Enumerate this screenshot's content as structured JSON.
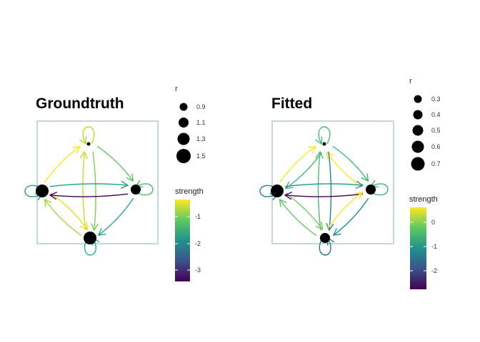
{
  "panels": [
    {
      "id": "groundtruth",
      "title": "Groundtruth",
      "size_legend": {
        "title": "r",
        "labels": [
          "0.9",
          "1.1",
          "1.3",
          "1.5"
        ]
      },
      "color_legend": {
        "title": "strength",
        "labels": [
          "-1",
          "-2",
          "-3"
        ]
      },
      "nodes": [
        {
          "name": "top",
          "size": "small"
        },
        {
          "name": "left",
          "size": "large"
        },
        {
          "name": "right",
          "size": "medium"
        },
        {
          "name": "bottom",
          "size": "large"
        }
      ],
      "edges": [
        {
          "from": "top",
          "to": "top",
          "color": "#b8de29"
        },
        {
          "from": "top",
          "to": "right",
          "color": "#5ec962"
        },
        {
          "from": "top",
          "to": "bottom",
          "color": "#7ad151"
        },
        {
          "from": "bottom",
          "to": "top",
          "color": "#c2df23"
        },
        {
          "from": "left",
          "to": "top",
          "color": "#fde725"
        },
        {
          "from": "left",
          "to": "left",
          "color": "#2a9d8f"
        },
        {
          "from": "left",
          "to": "bottom",
          "color": "#dde318"
        },
        {
          "from": "bottom",
          "to": "left",
          "color": "#a0da39"
        },
        {
          "from": "right",
          "to": "left",
          "color": "#440154"
        },
        {
          "from": "left",
          "to": "right",
          "color": "#1f9e89"
        },
        {
          "from": "right",
          "to": "right",
          "color": "#4ac16d"
        },
        {
          "from": "right",
          "to": "bottom",
          "color": "#22a884"
        },
        {
          "from": "bottom",
          "to": "bottom",
          "color": "#2db27d"
        }
      ]
    },
    {
      "id": "fitted",
      "title": "Fitted",
      "size_legend": {
        "title": "r",
        "labels": [
          "0.3",
          "0.4",
          "0.5",
          "0.6",
          "0.7"
        ]
      },
      "color_legend": {
        "title": "strength",
        "labels": [
          "0",
          "-1",
          "-2"
        ]
      },
      "nodes": [
        {
          "name": "top",
          "size": "small"
        },
        {
          "name": "left",
          "size": "large"
        },
        {
          "name": "right",
          "size": "medium"
        },
        {
          "name": "bottom",
          "size": "medium"
        }
      ],
      "edges": [
        {
          "from": "top",
          "to": "top",
          "color": "#44bf70"
        },
        {
          "from": "right",
          "to": "top",
          "color": "#fde725"
        },
        {
          "from": "top",
          "to": "right",
          "color": "#3dbc74"
        },
        {
          "from": "top",
          "to": "bottom",
          "color": "#25858e"
        },
        {
          "from": "bottom",
          "to": "top",
          "color": "#4ac16d"
        },
        {
          "from": "left",
          "to": "top",
          "color": "#fde725"
        },
        {
          "from": "top",
          "to": "left",
          "color": "#35b779"
        },
        {
          "from": "left",
          "to": "left",
          "color": "#26828e"
        },
        {
          "from": "left",
          "to": "bottom",
          "color": "#6ece58"
        },
        {
          "from": "bottom",
          "to": "left",
          "color": "#5ec962"
        },
        {
          "from": "right",
          "to": "left",
          "color": "#440154"
        },
        {
          "from": "left",
          "to": "right",
          "color": "#1f968b"
        },
        {
          "from": "right",
          "to": "right",
          "color": "#3dbc74"
        },
        {
          "from": "right",
          "to": "bottom",
          "color": "#21918c"
        },
        {
          "from": "bottom",
          "to": "right",
          "color": "#fde725"
        },
        {
          "from": "bottom",
          "to": "bottom",
          "color": "#2a788e"
        }
      ]
    }
  ],
  "colors": {
    "panel_border": "#8eacc4",
    "node_fill": "#000000",
    "viridis": [
      "#440154",
      "#3b528b",
      "#21918c",
      "#5ec962",
      "#fde725"
    ]
  }
}
